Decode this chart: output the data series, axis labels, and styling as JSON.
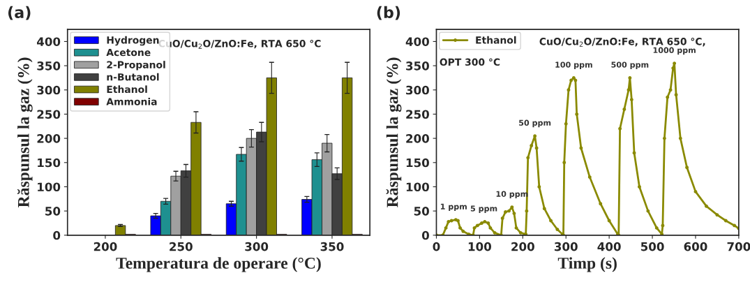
{
  "chart_data": [
    {
      "type": "bar",
      "categories": [
        "200",
        "250",
        "300",
        "350"
      ],
      "xlabel": "Temperatura de operare (°C)",
      "ylabel": "Răspunsul la gaz (%)",
      "ylim": [
        0,
        425
      ],
      "yticks": [
        0,
        50,
        100,
        150,
        200,
        250,
        300,
        350,
        400
      ],
      "legend": "top left",
      "grid": false,
      "annotations": [
        "(a)",
        "CuO/Cu$_{2}$O/ZnO:Fe, RTA 650 °C"
      ],
      "series": [
        {
          "name": "Hydrogen",
          "color": "#0000ff",
          "values": [
            null,
            40,
            65,
            74
          ],
          "errors": [
            null,
            5,
            5,
            6
          ]
        },
        {
          "name": "Acetone",
          "color": "#1e9090",
          "values": [
            null,
            70,
            167,
            156
          ],
          "errors": [
            null,
            6,
            14,
            14
          ]
        },
        {
          "name": "2-Propanol",
          "color": "#a0a0a0",
          "values": [
            null,
            122,
            200,
            190
          ],
          "errors": [
            null,
            10,
            18,
            18
          ]
        },
        {
          "name": "n-Butanol",
          "color": "#404040",
          "values": [
            null,
            133,
            213,
            127
          ],
          "errors": [
            null,
            13,
            20,
            12
          ]
        },
        {
          "name": "Ethanol",
          "color": "#808000",
          "values": [
            20,
            233,
            325,
            325
          ],
          "errors": [
            2,
            22,
            32,
            32
          ]
        },
        {
          "name": "Ammonia",
          "color": "#800000",
          "values": [
            2,
            2,
            2,
            2
          ],
          "errors": [
            null,
            null,
            null,
            null
          ]
        }
      ]
    },
    {
      "type": "line",
      "xlabel": "Timp (s)",
      "ylabel": "Răspunsul la gaz (%)",
      "xlim": [
        0,
        700
      ],
      "xticks": [
        0,
        100,
        200,
        300,
        400,
        500,
        600,
        700
      ],
      "ylim": [
        0,
        425
      ],
      "yticks": [
        0,
        50,
        100,
        150,
        200,
        250,
        300,
        350,
        400
      ],
      "legend": "top left",
      "grid": false,
      "marker": "circle",
      "line_style": "solid",
      "annotations": [
        "(b)",
        "CuO/Cu$_{2}$O/ZnO:Fe, RTA 650 °C,",
        "OPT 300 °C",
        {
          "text": "1 ppm",
          "x": 40,
          "y": 32
        },
        {
          "text": "5 ppm",
          "x": 110,
          "y": 28
        },
        {
          "text": "10 ppm",
          "x": 175,
          "y": 58
        },
        {
          "text": "50 ppm",
          "x": 228,
          "y": 205
        },
        {
          "text": "100 ppm",
          "x": 318,
          "y": 325
        },
        {
          "text": "500 ppm",
          "x": 448,
          "y": 325
        },
        {
          "text": "1000 ppm",
          "x": 551,
          "y": 355
        }
      ],
      "series": [
        {
          "name": "Ethanol",
          "color": "#8a8a00",
          "x": [
            0,
            15,
            22,
            28,
            35,
            45,
            50,
            55,
            62,
            75,
            85,
            88,
            95,
            105,
            112,
            120,
            125,
            135,
            150,
            153,
            160,
            168,
            175,
            180,
            185,
            195,
            207,
            209,
            212,
            220,
            228,
            232,
            238,
            250,
            265,
            280,
            292,
            294,
            296,
            300,
            306,
            312,
            318,
            322,
            325,
            335,
            355,
            380,
            400,
            420,
            422,
            425,
            435,
            445,
            448,
            452,
            458,
            470,
            490,
            510,
            522,
            524,
            528,
            535,
            542,
            548,
            551,
            555,
            565,
            580,
            600,
            625,
            650,
            670,
            690,
            700
          ],
          "values": [
            0,
            0,
            15,
            28,
            30,
            32,
            30,
            15,
            8,
            2,
            0,
            15,
            20,
            25,
            28,
            25,
            15,
            5,
            0,
            35,
            48,
            50,
            58,
            45,
            15,
            5,
            2,
            50,
            160,
            185,
            205,
            180,
            100,
            55,
            30,
            12,
            2,
            0,
            150,
            230,
            300,
            320,
            325,
            320,
            250,
            180,
            120,
            65,
            30,
            2,
            0,
            220,
            260,
            300,
            325,
            280,
            170,
            100,
            50,
            15,
            2,
            20,
            200,
            285,
            300,
            345,
            355,
            290,
            200,
            140,
            90,
            60,
            42,
            30,
            20,
            14
          ]
        }
      ]
    }
  ]
}
